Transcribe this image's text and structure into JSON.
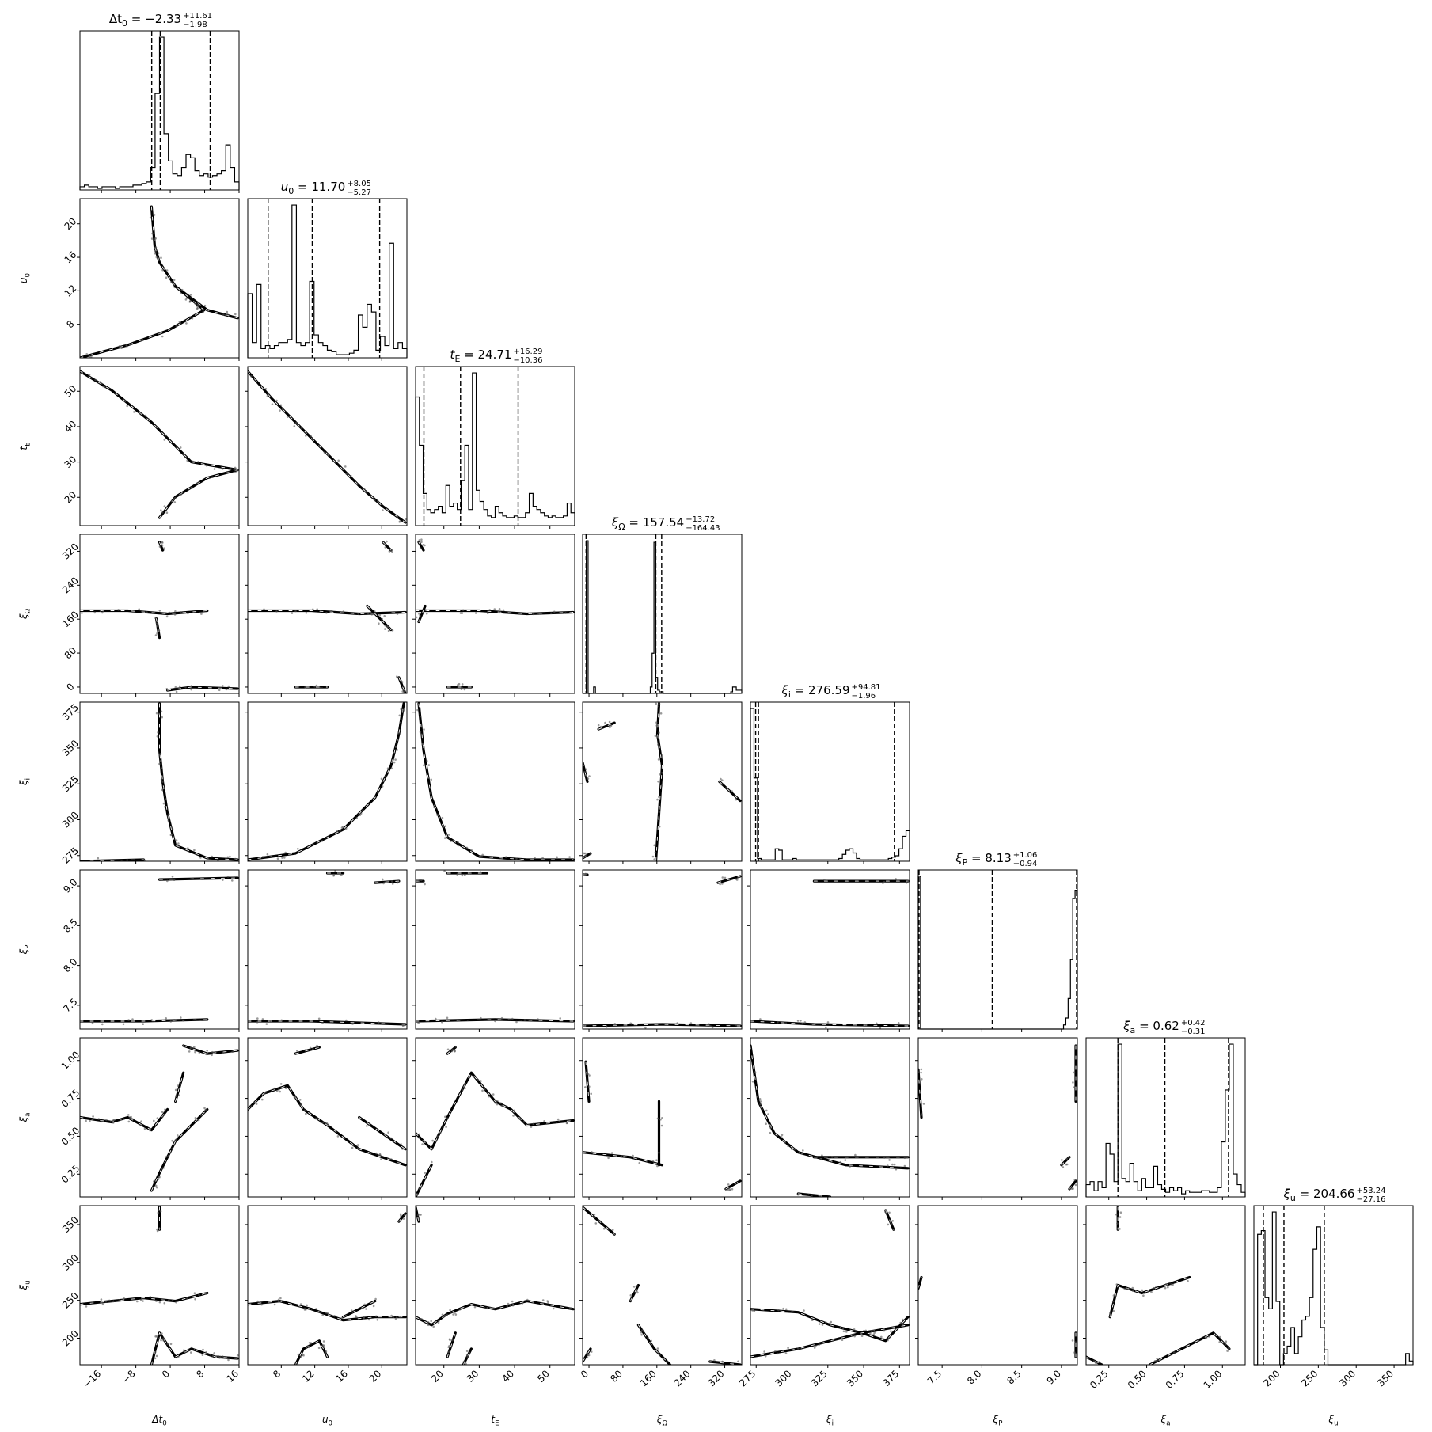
{
  "chart_data": {
    "type": "scatter",
    "kind": "corner-plot",
    "colors": {
      "ink": "#000000",
      "scatter": "#555555",
      "background": "#ffffff"
    },
    "parameters": [
      {
        "symbol": "Δt",
        "sub": "0",
        "axis_label": "Δt0",
        "range": [
          -21,
          16
        ],
        "ticks": [
          -16,
          -8,
          0,
          8,
          16
        ],
        "tick_labels": [
          "−16",
          "−8",
          "0",
          "8",
          "16"
        ],
        "title": {
          "value": "−2.33",
          "plus": "+11.61",
          "minus": "−1.98"
        },
        "quantiles": [
          -4.31,
          -2.33,
          9.28
        ],
        "hist": [
          2,
          3,
          2,
          2,
          1,
          2,
          2,
          2,
          1,
          2,
          2,
          2,
          3,
          3,
          4,
          5,
          14,
          60,
          95,
          35,
          18,
          10,
          9,
          14,
          22,
          20,
          12,
          9,
          10,
          8,
          9,
          10,
          12,
          28,
          14,
          5
        ]
      },
      {
        "symbol": "u",
        "sub": "0",
        "axis_label": "u0",
        "range": [
          4,
          23
        ],
        "ticks": [
          8,
          12,
          16,
          20
        ],
        "tick_labels": [
          "8",
          "12",
          "16",
          "20"
        ],
        "title": {
          "value": "11.70",
          "plus": "+8.05",
          "minus": "−5.27"
        },
        "quantiles": [
          6.43,
          11.7,
          19.75
        ],
        "hist": [
          42,
          10,
          48,
          6,
          8,
          6,
          8,
          10,
          10,
          12,
          100,
          10,
          8,
          10,
          50,
          15,
          10,
          8,
          5,
          4,
          2,
          2,
          2,
          3,
          5,
          28,
          20,
          35,
          30,
          5,
          14,
          8,
          75,
          6,
          10,
          6
        ]
      },
      {
        "symbol": "t",
        "sub": "E",
        "axis_label": "tE",
        "range": [
          12,
          57
        ],
        "ticks": [
          20,
          30,
          40,
          50
        ],
        "tick_labels": [
          "20",
          "30",
          "40",
          "50"
        ],
        "title": {
          "value": "24.71",
          "plus": "+16.29",
          "minus": "−10.36"
        },
        "quantiles": [
          14.35,
          24.71,
          41.0
        ],
        "hist": [
          80,
          50,
          20,
          10,
          8,
          10,
          12,
          8,
          25,
          12,
          14,
          10,
          28,
          50,
          10,
          95,
          22,
          15,
          10,
          6,
          5,
          12,
          8,
          6,
          5,
          5,
          6,
          5,
          5,
          8,
          20,
          12,
          10,
          8,
          6,
          5,
          6,
          5,
          5,
          6,
          14,
          8
        ]
      },
      {
        "symbol": "ξ",
        "sub": "Ω",
        "axis_label": "ξΩ",
        "range": [
          -15,
          360
        ],
        "ticks": [
          0,
          80,
          160,
          240,
          320
        ],
        "tick_labels": [
          "0",
          "80",
          "160",
          "240",
          "320"
        ],
        "title": {
          "value": "157.54",
          "plus": "+13.72",
          "minus": "−164.43"
        },
        "quantiles": [
          -6.89,
          157.54,
          171.26
        ],
        "hist": [
          0,
          0,
          95,
          0,
          0,
          0,
          4,
          0,
          0,
          0,
          0,
          0,
          0,
          0,
          0,
          0,
          0,
          0,
          0,
          0,
          0,
          0,
          0,
          0,
          0,
          0,
          0,
          0,
          0,
          0,
          0,
          0,
          0,
          0,
          0,
          0,
          0,
          4,
          25,
          94,
          10,
          2,
          1,
          1,
          0,
          0,
          0,
          0,
          0,
          0,
          0,
          0,
          0,
          0,
          0,
          0,
          0,
          0,
          0,
          0,
          0,
          0,
          0,
          0,
          0,
          0,
          0,
          0,
          0,
          0,
          0,
          0,
          0,
          0,
          0,
          0,
          0,
          0,
          0,
          0,
          0,
          1,
          4,
          4,
          2,
          2,
          2
        ]
      },
      {
        "symbol": "ξ",
        "sub": "i",
        "axis_label": "ξi",
        "range": [
          271,
          382
        ],
        "ticks": [
          275,
          300,
          325,
          350,
          375
        ],
        "tick_labels": [
          "275",
          "300",
          "325",
          "350",
          "375"
        ],
        "title": {
          "value": "276.59",
          "plus": "+94.81",
          "minus": "−1.96"
        },
        "quantiles": [
          274.63,
          276.59,
          371.4
        ],
        "hist": [
          110,
          60,
          2,
          1,
          1,
          1,
          1,
          9,
          8,
          1,
          1,
          1,
          2,
          1,
          1,
          1,
          1,
          1,
          1,
          1,
          1,
          1,
          1,
          1,
          1,
          2,
          5,
          8,
          9,
          6,
          2,
          1,
          1,
          1,
          1,
          1,
          1,
          1,
          1,
          2,
          3,
          4,
          9,
          18,
          22
        ]
      },
      {
        "symbol": "ξ",
        "sub": "P",
        "axis_label": "ξP",
        "range": [
          7.2,
          9.2
        ],
        "ticks": [
          7.5,
          8.0,
          8.5,
          9.0
        ],
        "tick_labels": [
          "7.5",
          "8.0",
          "8.5",
          "9.0"
        ],
        "title": {
          "value": "8.13",
          "plus": "+1.06",
          "minus": "−0.94"
        },
        "quantiles": [
          7.19,
          8.13,
          9.19
        ],
        "hist": [
          110,
          0,
          0,
          0,
          0,
          0,
          0,
          0,
          0,
          0,
          0,
          0,
          0,
          0,
          0,
          0,
          0,
          0,
          0,
          0,
          0,
          0,
          0,
          0,
          0,
          0,
          0,
          0,
          0,
          0,
          0,
          0,
          0,
          0,
          0,
          0,
          0,
          0,
          0,
          0,
          0,
          0,
          0,
          0,
          0,
          0,
          0,
          0,
          0,
          0,
          0,
          0,
          0,
          0,
          0,
          0,
          0,
          0,
          0,
          0,
          0,
          0,
          0,
          3,
          8,
          22,
          50,
          94,
          100
        ]
      },
      {
        "symbol": "ξ",
        "sub": "a",
        "axis_label": "ξa",
        "range": [
          0.1,
          1.15
        ],
        "ticks": [
          0.25,
          0.5,
          0.75,
          1.0
        ],
        "tick_labels": [
          "0.25",
          "0.50",
          "0.75",
          "1.00"
        ],
        "title": {
          "value": "0.62",
          "plus": "+0.42",
          "minus": "−0.31"
        },
        "quantiles": [
          0.31,
          0.62,
          1.04
        ],
        "hist": [
          8,
          10,
          4,
          10,
          6,
          35,
          28,
          10,
          100,
          12,
          10,
          22,
          10,
          4,
          12,
          6,
          6,
          20,
          8,
          5,
          3,
          6,
          4,
          6,
          2,
          4,
          3,
          3,
          3,
          4,
          4,
          3,
          3,
          6,
          36,
          70,
          100,
          15,
          8,
          3
        ]
      },
      {
        "symbol": "ξ",
        "sub": "u",
        "axis_label": "ξu",
        "range": [
          165,
          375
        ],
        "ticks": [
          200,
          250,
          300,
          350
        ],
        "tick_labels": [
          "200",
          "250",
          "300",
          "350"
        ],
        "title": {
          "value": "204.66",
          "plus": "+53.24",
          "minus": "−27.16"
        },
        "quantiles": [
          177.5,
          204.66,
          257.9
        ],
        "hist": [
          0,
          70,
          72,
          36,
          30,
          82,
          34,
          0,
          6,
          10,
          20,
          6,
          15,
          24,
          26,
          36,
          62,
          74,
          20,
          8,
          0,
          0,
          0,
          0,
          0,
          0,
          0,
          0,
          0,
          0,
          0,
          0,
          0,
          0,
          0,
          0,
          0,
          0,
          0,
          0,
          0,
          6,
          2
        ]
      }
    ]
  }
}
